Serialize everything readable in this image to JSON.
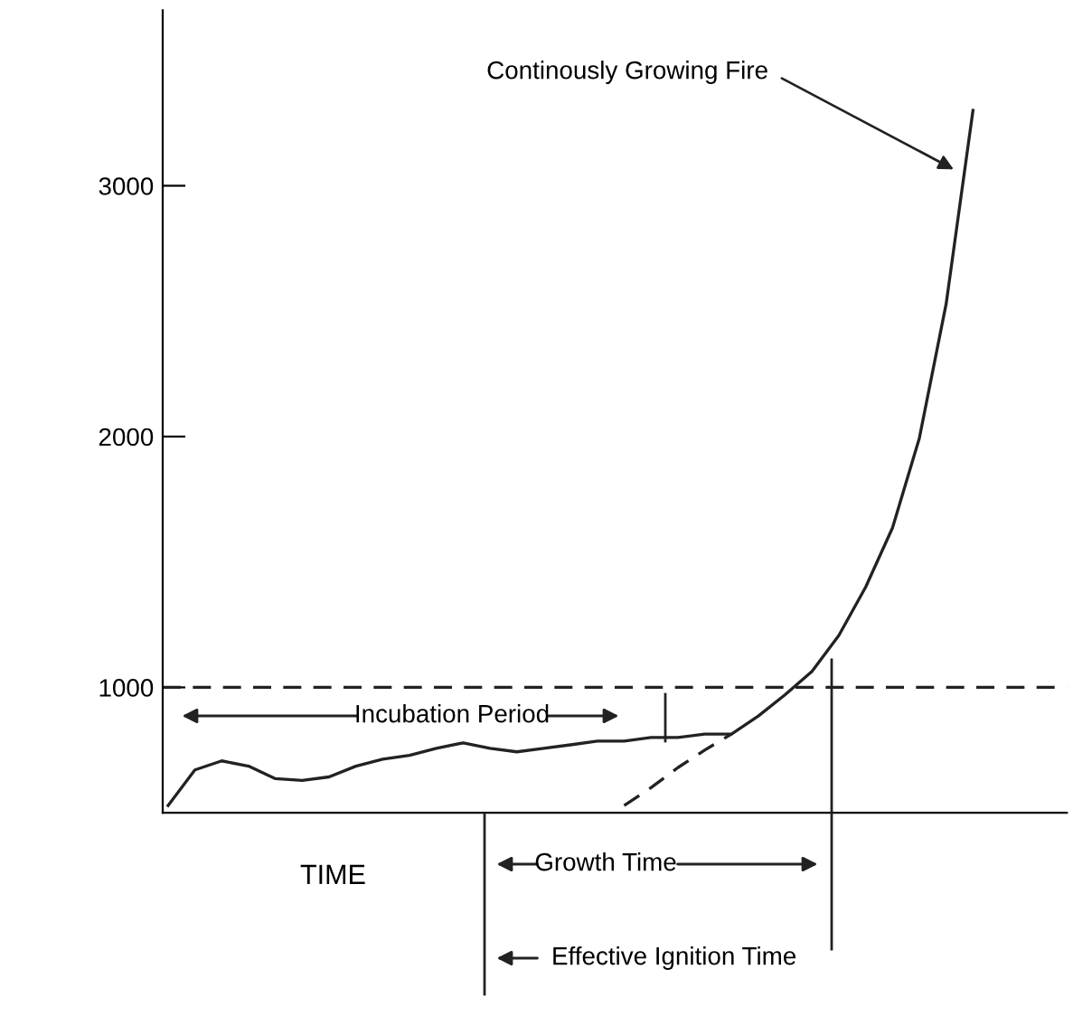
{
  "chart_data": {
    "type": "line",
    "xlabel": "TIME",
    "categories": [
      null,
      null,
      null,
      null,
      null,
      null,
      null,
      null,
      null,
      null,
      null,
      null,
      null,
      null,
      null,
      null,
      null,
      null,
      null,
      null,
      null,
      null,
      null,
      null,
      null,
      null,
      null,
      null,
      null,
      null,
      null,
      null,
      null,
      null
    ],
    "series": [
      {
        "color": "#222222",
        "line_style": "solid",
        "values": [
          529,
          671,
          707,
          686,
          636,
          629,
          643,
          686,
          714,
          729,
          757,
          779,
          757,
          743,
          757,
          771,
          786,
          786,
          800,
          800,
          814,
          814,
          886,
          971,
          1064,
          1207,
          1400,
          1636,
          1993,
          2529,
          3300,
          null,
          null,
          null
        ]
      },
      {
        "color": "#222222",
        "line_style": "dashed",
        "values": [
          null,
          null,
          null,
          null,
          null,
          null,
          null,
          null,
          null,
          null,
          null,
          null,
          null,
          null,
          null,
          null,
          null,
          529,
          600,
          680,
          750,
          814,
          null,
          null,
          null,
          null,
          null,
          null,
          null,
          null,
          null,
          null,
          null,
          null
        ]
      }
    ],
    "ylim": [
      500,
      3700
    ],
    "yticks": [
      1000,
      2000,
      3000
    ],
    "tick_labels": "y",
    "grid": false,
    "legend": false,
    "marker": "none",
    "ref_lines": [
      {
        "axis": "y",
        "value": 1000,
        "line_style": "dashed",
        "color": "#222222"
      }
    ],
    "annotations": [
      "Continously Growing Fire",
      "Incubation Period",
      "Growth Time",
      "Effective Ignition Time"
    ]
  }
}
